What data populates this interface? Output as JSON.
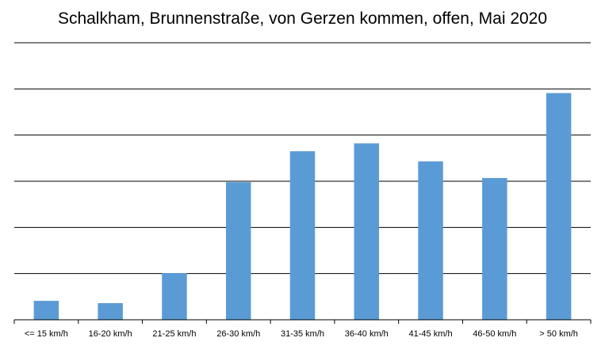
{
  "chart_data": {
    "type": "bar",
    "title": "Schalkham, Brunnenstraße, von Gerzen kommen, offen, Mai 2020",
    "xlabel": "",
    "ylabel": "",
    "categories": [
      "<= 15 km/h",
      "16-20 km/h",
      "21-25 km/h",
      "26-30 km/h",
      "31-35 km/h",
      "36-40 km/h",
      "41-45 km/h",
      "46-50 km/h",
      "> 50 km/h"
    ],
    "values": [
      0.41,
      0.36,
      1.01,
      2.98,
      3.65,
      3.82,
      3.43,
      3.07,
      4.91
    ],
    "ylim": [
      0,
      6
    ],
    "y_ticks_labeled": false,
    "grid": true,
    "legend": "none",
    "bar_color": "#5b9bd5"
  }
}
